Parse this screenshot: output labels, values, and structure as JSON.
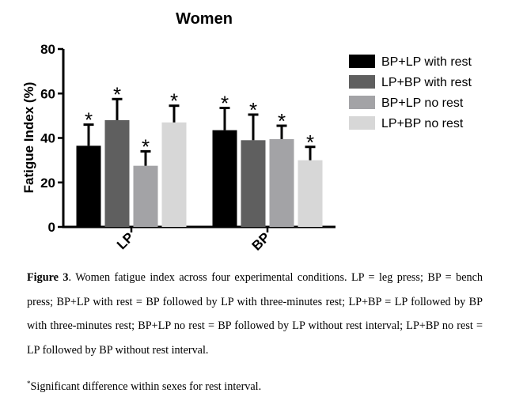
{
  "chart_data": {
    "type": "bar",
    "title": "Women",
    "ylabel": "Fatigue Index (%)",
    "xlabel": "",
    "categories": [
      "LP",
      "BP"
    ],
    "ylim": [
      0,
      80
    ],
    "yticks": [
      "0",
      "20",
      "40",
      "60",
      "80"
    ],
    "grid": false,
    "legend_position": "right",
    "error_bars": "upper only",
    "significance_marker": "*",
    "series": [
      {
        "name": "BP+LP with rest",
        "color": "#000000",
        "values": [
          36.5,
          43.5
        ],
        "errors": [
          9.5,
          10.0
        ],
        "significant": [
          true,
          true
        ]
      },
      {
        "name": "LP+BP with rest",
        "color": "#5f5f5f",
        "values": [
          48,
          39
        ],
        "errors": [
          9.5,
          11.5
        ],
        "significant": [
          true,
          true
        ]
      },
      {
        "name": "BP+LP no rest",
        "color": "#a3a3a6",
        "values": [
          27.5,
          39.5
        ],
        "errors": [
          6.5,
          6.0
        ],
        "significant": [
          true,
          true
        ]
      },
      {
        "name": "LP+BP no rest",
        "color": "#d7d7d7",
        "values": [
          47,
          30
        ],
        "errors": [
          7.5,
          6.0
        ],
        "significant": [
          true,
          true
        ]
      }
    ]
  },
  "caption": {
    "label": "Figure 3",
    "text": ". Women fatigue index across four experimental conditions. LP = leg press; BP = bench press; BP+LP with rest = BP followed by LP with three-minutes rest; LP+BP = LP followed by BP with three-minutes rest; BP+LP no rest = BP followed by LP without rest interval; LP+BP no rest = LP followed by BP without rest interval."
  },
  "footnote": {
    "marker": "*",
    "text": "Significant difference within sexes for rest interval."
  }
}
